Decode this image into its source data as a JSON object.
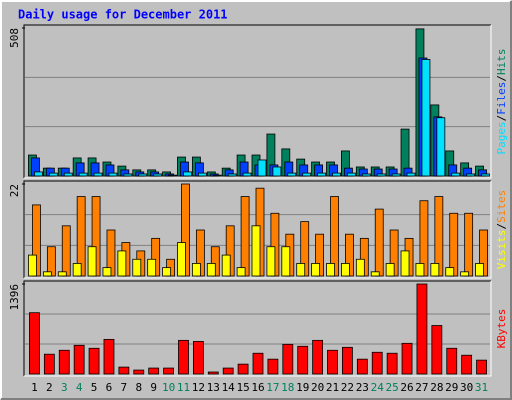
{
  "legend_separator": "/",
  "chart_data": {
    "type": "bar",
    "title": "Daily usage for December 2011",
    "categories": [
      "1",
      "2",
      "3",
      "4",
      "5",
      "6",
      "7",
      "8",
      "9",
      "10",
      "11",
      "12",
      "13",
      "14",
      "15",
      "16",
      "17",
      "18",
      "19",
      "20",
      "21",
      "22",
      "23",
      "24",
      "25",
      "26",
      "27",
      "28",
      "29",
      "30",
      "31"
    ],
    "category_colors": [
      "#000000",
      "#000000",
      "#00805C",
      "#00805C",
      "#000000",
      "#000000",
      "#000000",
      "#000000",
      "#000000",
      "#00805C",
      "#00805C",
      "#000000",
      "#000000",
      "#000000",
      "#000000",
      "#000000",
      "#00805C",
      "#00805C",
      "#000000",
      "#000000",
      "#000000",
      "#000000",
      "#000000",
      "#00805C",
      "#00805C",
      "#000000",
      "#000000",
      "#000000",
      "#000000",
      "#000000",
      "#00805C"
    ],
    "grid_divisions": 3,
    "panels": [
      {
        "ylim": [
          0,
          508
        ],
        "yticks": [
          508
        ],
        "series": [
          {
            "name": "Hits",
            "color": "#00805C",
            "values": [
              72,
              27,
              27,
              62,
              62,
              48,
              34,
              21,
              21,
              14,
              65,
              65,
              14,
              27,
              72,
              72,
              144,
              93,
              58,
              48,
              48,
              86,
              31,
              31,
              31,
              161,
              505,
              244,
              86,
              45,
              34
            ]
          },
          {
            "name": "Files",
            "color": "#0040FF",
            "values": [
              62,
              27,
              27,
              45,
              45,
              38,
              21,
              14,
              14,
              7,
              48,
              45,
              7,
              21,
              48,
              38,
              38,
              48,
              38,
              38,
              38,
              27,
              24,
              24,
              24,
              27,
              405,
              203,
              38,
              27,
              21
            ]
          },
          {
            "name": "Pages",
            "color": "#00E0FF",
            "values": [
              14,
              10,
              10,
              10,
              10,
              10,
              7,
              7,
              7,
              3,
              14,
              10,
              3,
              7,
              10,
              55,
              31,
              10,
              10,
              10,
              10,
              10,
              7,
              7,
              7,
              10,
              400,
              200,
              10,
              7,
              7
            ]
          }
        ]
      },
      {
        "ylim": [
          0,
          22
        ],
        "yticks": [
          22
        ],
        "series": [
          {
            "name": "Sites",
            "color": "#FF8000",
            "values": [
              17,
              7,
              12,
              19,
              19,
              11,
              8,
              6,
              9,
              4,
              22,
              11,
              7,
              12,
              19,
              21,
              15,
              10,
              13,
              10,
              19,
              10,
              9,
              16,
              11,
              9,
              18,
              19,
              15,
              15,
              11
            ]
          },
          {
            "name": "Visits",
            "color": "#FFFF00",
            "values": [
              5,
              1,
              1,
              3,
              7,
              2,
              6,
              4,
              4,
              2,
              8,
              3,
              3,
              5,
              2,
              12,
              7,
              7,
              3,
              3,
              3,
              3,
              4,
              1,
              3,
              6,
              3,
              3,
              2,
              1,
              3
            ]
          }
        ]
      },
      {
        "ylim": [
          0,
          1396
        ],
        "yticks": [
          1396
        ],
        "series": [
          {
            "name": "KBytes",
            "color": "#FF0000",
            "values": [
              951,
              307,
              368,
              445,
              399,
              537,
              107,
              61,
              92,
              92,
              522,
              506,
              31,
              92,
              153,
              322,
              230,
              460,
              430,
              522,
              368,
              414,
              230,
              337,
              322,
              476,
              1396,
              752,
              399,
              291,
              215
            ]
          }
        ]
      }
    ]
  }
}
